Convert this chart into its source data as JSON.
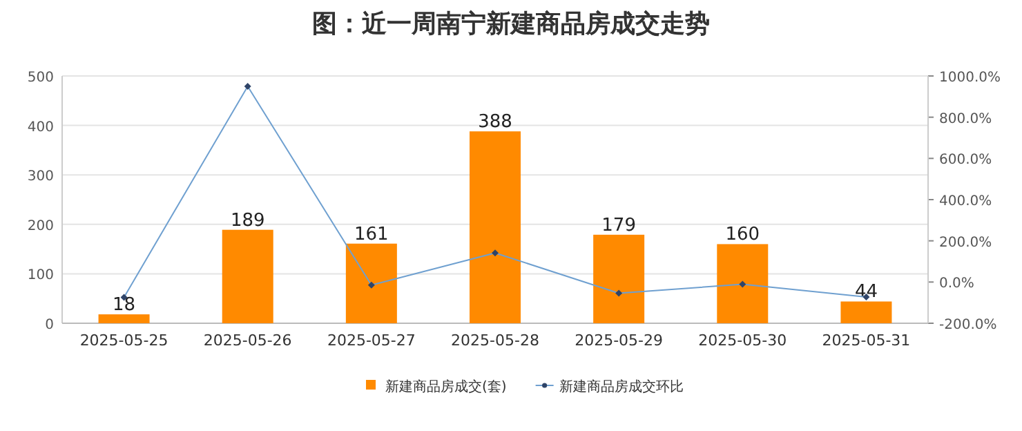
{
  "chart_data": {
    "type": "bar",
    "title": "图：近一周南宁新建商品房成交走势",
    "categories": [
      "2025-05-25",
      "2025-05-26",
      "2025-05-27",
      "2025-05-28",
      "2025-05-29",
      "2025-05-30",
      "2025-05-31"
    ],
    "series": [
      {
        "name": "新建商品房成交(套)",
        "color": "#ff8a00",
        "values": [
          18,
          189,
          161,
          388,
          179,
          160,
          44
        ],
        "data_labels": true
      },
      {
        "name": "新建商品房成交环比",
        "type": "line",
        "axis": "y2",
        "color": "#6fa0d0",
        "marker": "diamond",
        "values": [
          -74,
          950,
          -15,
          141,
          -54,
          -11,
          -73
        ]
      }
    ],
    "ylim": [
      0,
      500
    ],
    "yticks": [
      0,
      100,
      200,
      300,
      400,
      500
    ],
    "y2lim": [
      -200,
      1000
    ],
    "y2ticks": [
      {
        "value": -200,
        "label": "-200.0%"
      },
      {
        "value": 0,
        "label": "0.0%"
      },
      {
        "value": 200,
        "label": "200.0%"
      },
      {
        "value": 400,
        "label": "400.0%"
      },
      {
        "value": 600,
        "label": "600.0%"
      },
      {
        "value": 800,
        "label": "800.0%"
      },
      {
        "value": 1000,
        "label": "1000.0%"
      }
    ],
    "grid": "y",
    "legend": "bottom"
  }
}
